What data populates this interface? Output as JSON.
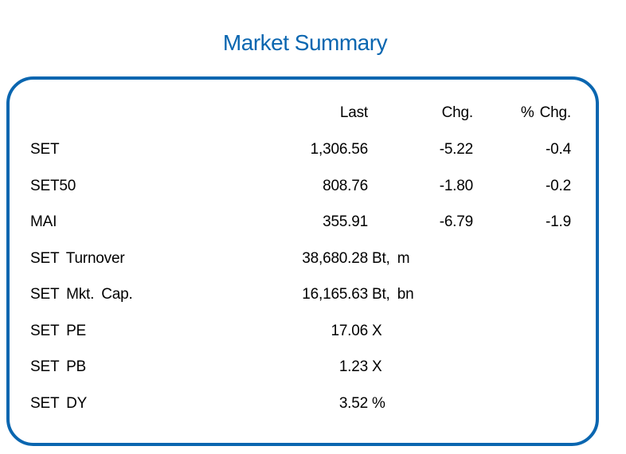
{
  "title": "Market Summary",
  "colors": {
    "title": "#0a66b0",
    "border": "#0a66b0",
    "text": "#000000"
  },
  "headers": {
    "last": "Last",
    "chg": "Chg.",
    "pct_chg": "% Chg."
  },
  "indices": [
    {
      "name": "SET",
      "last": "1,306.56",
      "chg": "-5.22",
      "pct_chg": "-0.4"
    },
    {
      "name": "SET50",
      "last": "808.76",
      "chg": "-1.80",
      "pct_chg": "-0.2"
    },
    {
      "name": "MAI",
      "last": "355.91",
      "chg": "-6.79",
      "pct_chg": "-1.9"
    }
  ],
  "stats": [
    {
      "name": "SET Turnover",
      "value": "38,680.28",
      "unit": "Bt, m"
    },
    {
      "name": "SET Mkt. Cap.",
      "value": "16,165.63",
      "unit": "Bt, bn"
    },
    {
      "name": "SET PE",
      "value": "17.06",
      "unit": "X"
    },
    {
      "name": "SET PB",
      "value": "1.23",
      "unit": "X"
    },
    {
      "name": "SET DY",
      "value": "3.52",
      "unit": "%"
    }
  ]
}
